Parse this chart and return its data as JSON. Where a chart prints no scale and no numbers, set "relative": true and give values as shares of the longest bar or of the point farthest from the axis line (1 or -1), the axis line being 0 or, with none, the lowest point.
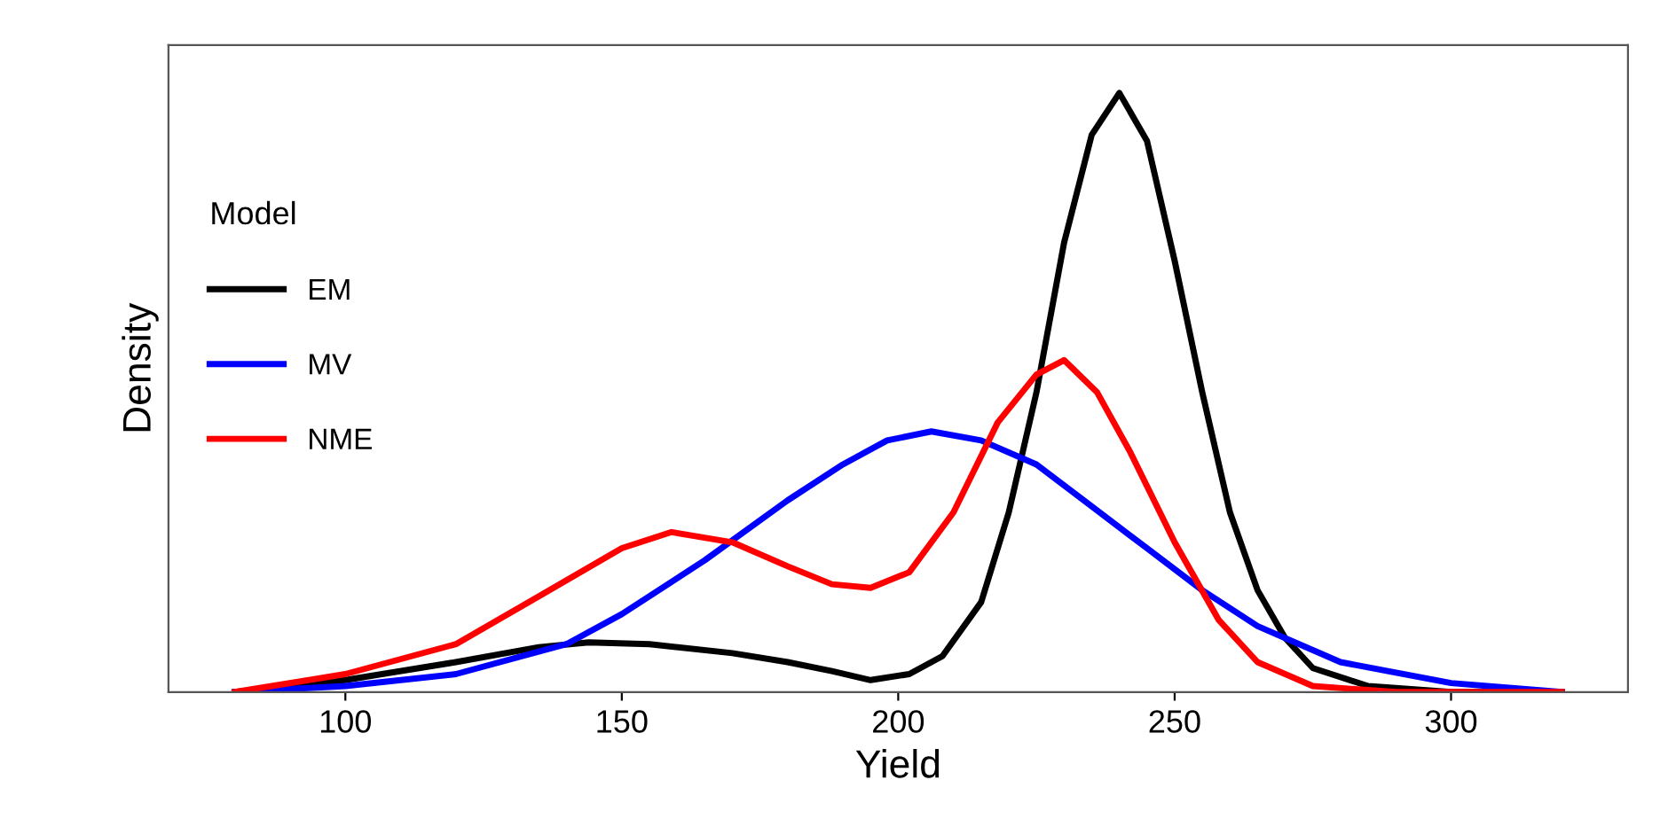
{
  "chart_data": {
    "type": "line",
    "xlabel": "Yield",
    "ylabel": "Density",
    "legend_title": "Model",
    "legend": "top left",
    "relative": true,
    "grid": false,
    "xlim": [
      68,
      332
    ],
    "xticks": [
      100,
      150,
      200,
      250,
      300
    ],
    "series": [
      {
        "name": "EM",
        "color": "#000000",
        "x": [
          80,
          100,
          120,
          135,
          144,
          155,
          170,
          180,
          188,
          195,
          202,
          208,
          215,
          220,
          225,
          230,
          235,
          240,
          245,
          250,
          255,
          260,
          265,
          270,
          275,
          285,
          300,
          320
        ],
        "values": [
          0,
          0.02,
          0.05,
          0.075,
          0.083,
          0.08,
          0.065,
          0.05,
          0.035,
          0.02,
          0.03,
          0.06,
          0.15,
          0.3,
          0.5,
          0.75,
          0.93,
          1.0,
          0.92,
          0.72,
          0.5,
          0.3,
          0.17,
          0.09,
          0.04,
          0.01,
          0,
          0
        ]
      },
      {
        "name": "MV",
        "color": "#0000ff",
        "x": [
          80,
          100,
          120,
          140,
          150,
          165,
          180,
          190,
          198,
          206,
          215,
          225,
          235,
          245,
          255,
          265,
          280,
          300,
          320
        ],
        "values": [
          0,
          0.01,
          0.03,
          0.08,
          0.13,
          0.22,
          0.32,
          0.38,
          0.42,
          0.435,
          0.42,
          0.38,
          0.31,
          0.24,
          0.17,
          0.11,
          0.05,
          0.015,
          0
        ]
      },
      {
        "name": "NME",
        "color": "#ff0000",
        "x": [
          80,
          100,
          120,
          135,
          150,
          159,
          170,
          180,
          188,
          195,
          202,
          210,
          218,
          225,
          230,
          236,
          242,
          250,
          258,
          265,
          275,
          290,
          320
        ],
        "values": [
          0,
          0.03,
          0.08,
          0.16,
          0.24,
          0.267,
          0.25,
          0.21,
          0.18,
          0.174,
          0.2,
          0.3,
          0.45,
          0.53,
          0.554,
          0.5,
          0.4,
          0.25,
          0.12,
          0.05,
          0.01,
          0,
          0
        ]
      }
    ]
  }
}
